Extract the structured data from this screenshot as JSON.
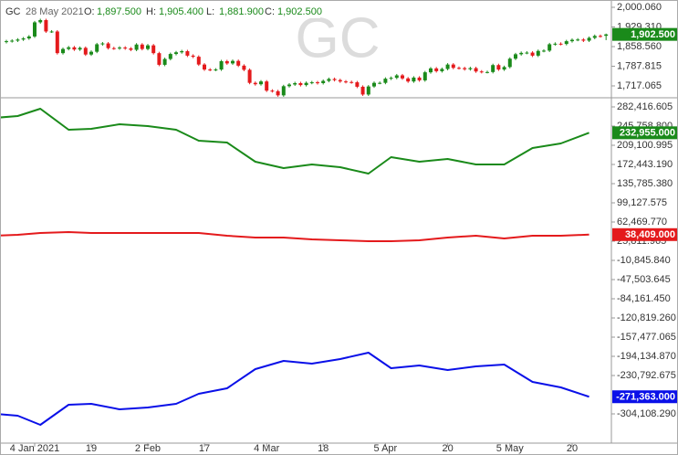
{
  "chart_data": [
    {
      "type": "candlestick",
      "watermark": "GC",
      "header": [
        "GC",
        "28 May 2021",
        "O:",
        "1,897.500",
        "H:",
        "1,905.400",
        "L:",
        "1,881.900",
        "C:",
        "1,902.500"
      ],
      "up_color": "#1a8a1a",
      "down_color": "#e41a1c",
      "xlim": [
        -6.13,
        101.94
      ],
      "ylim": [
        1677.6,
        2026.4
      ],
      "yticks": [
        {
          "value": 2000.06,
          "label": "2,000.060"
        },
        {
          "value": 1929.31,
          "label": "1,929.310"
        },
        {
          "value": 1858.56,
          "label": "1,858.560"
        },
        {
          "value": 1787.815,
          "label": "1,787.815"
        },
        {
          "value": 1717.065,
          "label": "1,717.065"
        }
      ],
      "last_label": "1,902.500",
      "last_color": "#1a8a1a",
      "x": [
        -5,
        -4,
        -3,
        -2,
        -1,
        0,
        1,
        2,
        3,
        4,
        5,
        6,
        7,
        8,
        9,
        10,
        11,
        12,
        13,
        14,
        15,
        16,
        17,
        18,
        19,
        20,
        21,
        22,
        23,
        24,
        25,
        26,
        27,
        28,
        29,
        30,
        31,
        32,
        33,
        34,
        35,
        36,
        37,
        38,
        39,
        40,
        41,
        42,
        43,
        44,
        45,
        46,
        47,
        48,
        49,
        50,
        51,
        52,
        53,
        54,
        55,
        56,
        57,
        58,
        59,
        60,
        61,
        62,
        63,
        64,
        65,
        66,
        67,
        68,
        69,
        70,
        71,
        72,
        73,
        74,
        75,
        76,
        77,
        78,
        79,
        80,
        81,
        82,
        83,
        84,
        85,
        86,
        87,
        88,
        89,
        90,
        91,
        92,
        93,
        94,
        95,
        96,
        97,
        98,
        99,
        100,
        101
      ],
      "o": [
        1875,
        1878,
        1880,
        1884,
        1888,
        1895,
        1946,
        1954,
        1913,
        1913,
        1835,
        1850,
        1856,
        1848,
        1854,
        1830,
        1840,
        1867,
        1870,
        1853,
        1852,
        1855,
        1852,
        1847,
        1866,
        1850,
        1863,
        1835,
        1793,
        1814,
        1832,
        1838,
        1842,
        1826,
        1822,
        1794,
        1776,
        1775,
        1776,
        1806,
        1798,
        1807,
        1790,
        1775,
        1728,
        1723,
        1733,
        1700,
        1698,
        1683,
        1716,
        1722,
        1727,
        1720,
        1728,
        1730,
        1727,
        1735,
        1742,
        1738,
        1733,
        1731,
        1730,
        1714,
        1686,
        1715,
        1728,
        1728,
        1743,
        1746,
        1755,
        1744,
        1733,
        1747,
        1737,
        1766,
        1780,
        1770,
        1778,
        1794,
        1782,
        1781,
        1777,
        1781,
        1769,
        1767,
        1767,
        1792,
        1776,
        1785,
        1815,
        1831,
        1836,
        1837,
        1826,
        1843,
        1844,
        1867,
        1869,
        1868,
        1878,
        1883,
        1884,
        1880,
        1890,
        1897,
        1897.5
      ],
      "h": [
        1883,
        1885,
        1889,
        1893,
        1900,
        1951,
        1959,
        1959,
        1918,
        1918,
        1855,
        1861,
        1861,
        1859,
        1859,
        1845,
        1872,
        1875,
        1875,
        1858,
        1860,
        1860,
        1857,
        1871,
        1871,
        1868,
        1868,
        1840,
        1819,
        1837,
        1843,
        1847,
        1847,
        1831,
        1827,
        1799,
        1781,
        1781,
        1811,
        1811,
        1812,
        1812,
        1795,
        1780,
        1733,
        1738,
        1738,
        1705,
        1703,
        1721,
        1727,
        1732,
        1732,
        1733,
        1735,
        1735,
        1740,
        1747,
        1747,
        1743,
        1738,
        1736,
        1735,
        1719,
        1720,
        1733,
        1733,
        1748,
        1751,
        1760,
        1760,
        1749,
        1752,
        1752,
        1771,
        1785,
        1785,
        1783,
        1799,
        1799,
        1787,
        1786,
        1786,
        1786,
        1774,
        1772,
        1797,
        1797,
        1790,
        1820,
        1836,
        1841,
        1842,
        1842,
        1848,
        1849,
        1872,
        1874,
        1874,
        1883,
        1888,
        1889,
        1889,
        1895,
        1902,
        1902,
        1905.4
      ],
      "l": [
        1870,
        1873,
        1875,
        1879,
        1883,
        1890,
        1941,
        1908,
        1908,
        1830,
        1830,
        1845,
        1843,
        1843,
        1825,
        1825,
        1835,
        1862,
        1848,
        1847,
        1847,
        1847,
        1842,
        1842,
        1845,
        1845,
        1830,
        1788,
        1788,
        1809,
        1827,
        1833,
        1821,
        1817,
        1789,
        1771,
        1770,
        1770,
        1771,
        1793,
        1793,
        1785,
        1770,
        1723,
        1718,
        1718,
        1695,
        1693,
        1678,
        1678,
        1711,
        1717,
        1715,
        1715,
        1723,
        1722,
        1722,
        1730,
        1733,
        1728,
        1726,
        1725,
        1709,
        1681,
        1681,
        1710,
        1723,
        1723,
        1738,
        1741,
        1739,
        1728,
        1728,
        1732,
        1732,
        1761,
        1765,
        1765,
        1773,
        1777,
        1776,
        1772,
        1772,
        1764,
        1762,
        1762,
        1762,
        1771,
        1771,
        1780,
        1810,
        1826,
        1831,
        1821,
        1821,
        1838,
        1839,
        1862,
        1863,
        1863,
        1873,
        1878,
        1875,
        1875,
        1885,
        1891,
        1881.9
      ],
      "c": [
        1878,
        1880,
        1884,
        1888,
        1895,
        1946,
        1954,
        1913,
        1913,
        1835,
        1850,
        1856,
        1848,
        1854,
        1830,
        1840,
        1867,
        1870,
        1853,
        1852,
        1855,
        1852,
        1847,
        1866,
        1850,
        1863,
        1835,
        1793,
        1814,
        1832,
        1838,
        1842,
        1826,
        1822,
        1794,
        1776,
        1775,
        1776,
        1806,
        1798,
        1807,
        1790,
        1775,
        1728,
        1723,
        1733,
        1700,
        1698,
        1683,
        1716,
        1722,
        1727,
        1720,
        1728,
        1730,
        1727,
        1735,
        1742,
        1738,
        1733,
        1731,
        1730,
        1714,
        1686,
        1715,
        1728,
        1728,
        1743,
        1746,
        1755,
        1744,
        1733,
        1747,
        1737,
        1766,
        1780,
        1770,
        1778,
        1794,
        1782,
        1781,
        1777,
        1781,
        1769,
        1767,
        1767,
        1792,
        1776,
        1785,
        1815,
        1831,
        1836,
        1837,
        1826,
        1843,
        1844,
        1867,
        1869,
        1868,
        1878,
        1883,
        1884,
        1880,
        1890,
        1897,
        1896,
        1902.5
      ]
    },
    {
      "type": "line",
      "xlim": [
        -6.13,
        101.94
      ],
      "ylim": [
        -359968,
        298127
      ],
      "xticks": [
        {
          "value": 0,
          "label": "4 Jan 2021"
        },
        {
          "value": 10,
          "label": "19"
        },
        {
          "value": 20,
          "label": "2 Feb"
        },
        {
          "value": 30,
          "label": "17"
        },
        {
          "value": 41,
          "label": "4 Mar"
        },
        {
          "value": 51,
          "label": "18"
        },
        {
          "value": 62,
          "label": "5 Apr"
        },
        {
          "value": 73,
          "label": "20"
        },
        {
          "value": 84,
          "label": "5 May"
        },
        {
          "value": 95,
          "label": "20"
        }
      ],
      "yticks": [
        {
          "value": 282416.605,
          "label": "282,416.605"
        },
        {
          "value": 245758.8,
          "label": "245,758.800"
        },
        {
          "value": 209100.995,
          "label": "209,100.995"
        },
        {
          "value": 172443.19,
          "label": "172,443.190"
        },
        {
          "value": 135785.38,
          "label": "135,785.380"
        },
        {
          "value": 99127.575,
          "label": "99,127.575"
        },
        {
          "value": 62469.77,
          "label": "62,469.770"
        },
        {
          "value": 25811.965,
          "label": "25,811.965"
        },
        {
          "value": -10845.84,
          "label": "-10,845.840"
        },
        {
          "value": -47503.645,
          "label": "-47,503.645"
        },
        {
          "value": -84161.45,
          "label": "-84,161.450"
        },
        {
          "value": -120819.26,
          "label": "-120,819.260"
        },
        {
          "value": -157477.065,
          "label": "-157,477.065"
        },
        {
          "value": -194134.87,
          "label": "-194,134.870"
        },
        {
          "value": -230792.675,
          "label": "-230,792.675"
        },
        {
          "value": -304108.29,
          "label": "-304,108.290"
        }
      ],
      "x": [
        -7,
        -3,
        1,
        6,
        10,
        15,
        20,
        25,
        29,
        34,
        39,
        44,
        49,
        54,
        59,
        63,
        68,
        73,
        78,
        83,
        88,
        93,
        98
      ],
      "series": [
        {
          "color": "#1a8a1a",
          "last_label": "232,955.000",
          "values": [
            261470,
            264960,
            278926,
            238776,
            240522,
            249250,
            245760,
            238776,
            217830,
            214340,
            177680,
            165460,
            172440,
            167210,
            154990,
            186410,
            177680,
            182920,
            172440,
            172440,
            203860,
            212590,
            232955
          ]
        },
        {
          "color": "#e41a1c",
          "last_label": "38,409.000",
          "values": [
            36290,
            38040,
            41530,
            43270,
            41530,
            41530,
            41530,
            41530,
            41530,
            36290,
            32800,
            32800,
            29310,
            27560,
            25820,
            25820,
            27560,
            32800,
            36290,
            31050,
            36290,
            36290,
            38409
          ]
        },
        {
          "color": "#0a10e8",
          "last_label": "-271,363.000",
          "values": [
            -304105,
            -307596,
            -325052,
            -286649,
            -284903,
            -295377,
            -291886,
            -284903,
            -265702,
            -255228,
            -218571,
            -202860,
            -208097,
            -199369,
            -187150,
            -216825,
            -211588,
            -220316,
            -213334,
            -209843,
            -243009,
            -253483,
            -271363
          ]
        }
      ]
    }
  ]
}
